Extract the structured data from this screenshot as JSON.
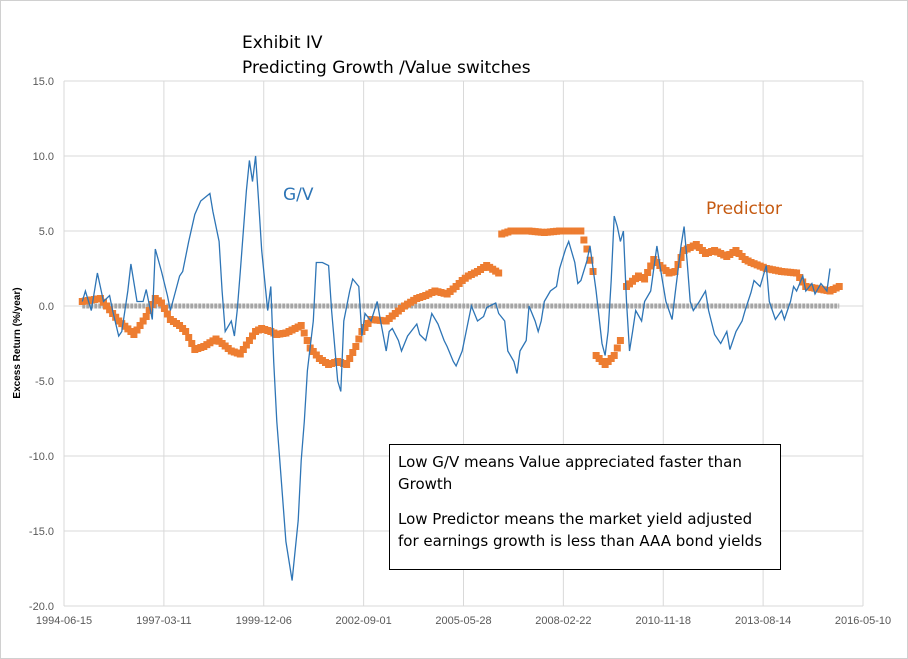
{
  "chart_data": {
    "type": "line",
    "title": "Exhibit IV",
    "subtitle": "Predicting Growth /Value switches",
    "xlabel": "",
    "ylabel": "Excess Return (%/year)",
    "xlim": [
      "1994-06-15",
      "2016-05-10"
    ],
    "x_ticks": [
      "1994-06-15",
      "1997-03-11",
      "1999-12-06",
      "2002-09-01",
      "2005-05-28",
      "2008-02-22",
      "2010-11-18",
      "2013-08-14",
      "2016-05-10"
    ],
    "ylim": [
      -20,
      15
    ],
    "y_ticks": [
      "-20.0",
      "-15.0",
      "-10.0",
      "-5.0",
      "0.0",
      "5.0",
      "10.0",
      "15.0"
    ],
    "grid": true,
    "legend": "none",
    "annotations": {
      "gv": "G/V",
      "predictor": "Predictor",
      "note1": "Low G/V means Value appreciated faster than Growth",
      "note2": "Low Predictor means the market yield adjusted for earnings growth is less than AAA bond yields"
    },
    "colors": {
      "gv": "#2e75b6",
      "predictor": "#ed7d31",
      "zero": "#a5a5a5"
    },
    "series": [
      {
        "name": "G/V",
        "style": "line",
        "points": [
          [
            "1994-12",
            0.3
          ],
          [
            "1995-01",
            1.0
          ],
          [
            "1995-03",
            -0.3
          ],
          [
            "1995-05",
            2.2
          ],
          [
            "1995-07",
            0.3
          ],
          [
            "1995-09",
            0.7
          ],
          [
            "1995-10",
            -0.3
          ],
          [
            "1995-12",
            -2.0
          ],
          [
            "1996-01",
            -1.7
          ],
          [
            "1996-03",
            1.0
          ],
          [
            "1996-04",
            2.8
          ],
          [
            "1996-06",
            0.3
          ],
          [
            "1996-08",
            0.3
          ],
          [
            "1996-09",
            1.1
          ],
          [
            "1996-11",
            -0.9
          ],
          [
            "1996-12",
            3.8
          ],
          [
            "1997-02",
            2.3
          ],
          [
            "1997-04",
            0.7
          ],
          [
            "1997-05",
            -0.3
          ],
          [
            "1997-08",
            2.0
          ],
          [
            "1997-09",
            2.3
          ],
          [
            "1997-11",
            4.3
          ],
          [
            "1998-01",
            6.1
          ],
          [
            "1998-03",
            7.0
          ],
          [
            "1998-06",
            7.5
          ],
          [
            "1998-07",
            6.3
          ],
          [
            "1998-09",
            4.3
          ],
          [
            "1998-10",
            1.0
          ],
          [
            "1998-11",
            -1.7
          ],
          [
            "1999-01",
            -1.0
          ],
          [
            "1999-02",
            -2.0
          ],
          [
            "1999-03",
            -0.3
          ],
          [
            "1999-04",
            2.3
          ],
          [
            "1999-06",
            7.7
          ],
          [
            "1999-07",
            9.7
          ],
          [
            "1999-08",
            8.3
          ],
          [
            "1999-09",
            10.0
          ],
          [
            "1999-10",
            7.0
          ],
          [
            "1999-11",
            3.7
          ],
          [
            "2000-01",
            -0.3
          ],
          [
            "2000-02",
            1.3
          ],
          [
            "2000-03",
            -3.7
          ],
          [
            "2000-04",
            -7.7
          ],
          [
            "2000-05",
            -10.3
          ],
          [
            "2000-07",
            -15.7
          ],
          [
            "2000-08",
            -17.0
          ],
          [
            "2000-09",
            -18.3
          ],
          [
            "2000-11",
            -14.3
          ],
          [
            "2000-12",
            -10.3
          ],
          [
            "2001-01",
            -7.7
          ],
          [
            "2001-02",
            -4.3
          ],
          [
            "2001-04",
            -1.0
          ],
          [
            "2001-05",
            2.9
          ],
          [
            "2001-07",
            2.9
          ],
          [
            "2001-09",
            2.7
          ],
          [
            "2001-10",
            -0.3
          ],
          [
            "2001-12",
            -5.0
          ],
          [
            "2002-01",
            -5.7
          ],
          [
            "2002-02",
            -1.0
          ],
          [
            "2002-04",
            1.0
          ],
          [
            "2002-05",
            1.8
          ],
          [
            "2002-07",
            1.3
          ],
          [
            "2002-08",
            -2.0
          ],
          [
            "2002-09",
            -0.5
          ],
          [
            "2002-11",
            -1.0
          ],
          [
            "2003-01",
            0.3
          ],
          [
            "2003-02",
            -0.9
          ],
          [
            "2003-04",
            -3.0
          ],
          [
            "2003-05",
            -1.7
          ],
          [
            "2003-06",
            -1.5
          ],
          [
            "2003-08",
            -2.3
          ],
          [
            "2003-09",
            -3.0
          ],
          [
            "2003-11",
            -2.0
          ],
          [
            "2004-02",
            -1.2
          ],
          [
            "2004-03",
            -1.9
          ],
          [
            "2004-05",
            -2.3
          ],
          [
            "2004-07",
            -0.5
          ],
          [
            "2004-09",
            -1.2
          ],
          [
            "2004-11",
            -2.3
          ],
          [
            "2004-12",
            -2.7
          ],
          [
            "2005-02",
            -3.7
          ],
          [
            "2005-03",
            -4.0
          ],
          [
            "2005-05",
            -3.0
          ],
          [
            "2005-07",
            -1.0
          ],
          [
            "2005-08",
            0.0
          ],
          [
            "2005-10",
            -1.0
          ],
          [
            "2005-12",
            -0.7
          ],
          [
            "2006-01",
            -0.1
          ],
          [
            "2006-03",
            0.1
          ],
          [
            "2006-04",
            0.2
          ],
          [
            "2006-05",
            -0.5
          ],
          [
            "2006-07",
            -1.0
          ],
          [
            "2006-08",
            -3.0
          ],
          [
            "2006-10",
            -3.7
          ],
          [
            "2006-11",
            -4.5
          ],
          [
            "2006-12",
            -3.0
          ],
          [
            "2007-02",
            -2.3
          ],
          [
            "2007-03",
            0.0
          ],
          [
            "2007-05",
            -1.0
          ],
          [
            "2007-06",
            -1.7
          ],
          [
            "2007-07",
            -1.0
          ],
          [
            "2007-08",
            0.3
          ],
          [
            "2007-10",
            1.0
          ],
          [
            "2007-12",
            1.3
          ],
          [
            "2008-01",
            2.5
          ],
          [
            "2008-03",
            3.8
          ],
          [
            "2008-04",
            4.3
          ],
          [
            "2008-06",
            2.9
          ],
          [
            "2008-07",
            1.5
          ],
          [
            "2008-08",
            1.7
          ],
          [
            "2008-10",
            3.0
          ],
          [
            "2008-11",
            4.0
          ],
          [
            "2009-01",
            1.0
          ],
          [
            "2009-03",
            -2.5
          ],
          [
            "2009-04",
            -3.3
          ],
          [
            "2009-05",
            -1.7
          ],
          [
            "2009-06",
            1.7
          ],
          [
            "2009-07",
            6.0
          ],
          [
            "2009-08",
            5.3
          ],
          [
            "2009-09",
            4.3
          ],
          [
            "2009-10",
            5.0
          ],
          [
            "2009-11",
            0.3
          ],
          [
            "2009-12",
            -3.0
          ],
          [
            "2010-01",
            -1.7
          ],
          [
            "2010-02",
            -0.3
          ],
          [
            "2010-04",
            -1.0
          ],
          [
            "2010-05",
            0.3
          ],
          [
            "2010-07",
            1.0
          ],
          [
            "2010-09",
            4.0
          ],
          [
            "2010-10",
            2.7
          ],
          [
            "2010-12",
            0.3
          ],
          [
            "2011-02",
            -0.9
          ],
          [
            "2011-03",
            0.7
          ],
          [
            "2011-05",
            4.0
          ],
          [
            "2011-06",
            5.3
          ],
          [
            "2011-07",
            3.0
          ],
          [
            "2011-08",
            0.3
          ],
          [
            "2011-09",
            -0.3
          ],
          [
            "2011-11",
            0.3
          ],
          [
            "2012-01",
            1.0
          ],
          [
            "2012-02",
            -0.3
          ],
          [
            "2012-04",
            -1.9
          ],
          [
            "2012-06",
            -2.5
          ],
          [
            "2012-08",
            -1.7
          ],
          [
            "2012-09",
            -2.9
          ],
          [
            "2012-11",
            -1.7
          ],
          [
            "2013-01",
            -1.0
          ],
          [
            "2013-02",
            -0.3
          ],
          [
            "2013-04",
            0.9
          ],
          [
            "2013-05",
            1.7
          ],
          [
            "2013-07",
            1.3
          ],
          [
            "2013-09",
            2.7
          ],
          [
            "2013-10",
            0.3
          ],
          [
            "2013-12",
            -0.9
          ],
          [
            "2014-02",
            -0.3
          ],
          [
            "2014-03",
            -0.9
          ],
          [
            "2014-05",
            0.3
          ],
          [
            "2014-06",
            1.3
          ],
          [
            "2014-07",
            1.0
          ],
          [
            "2014-09",
            2.0
          ],
          [
            "2014-10",
            1.0
          ],
          [
            "2014-12",
            1.5
          ],
          [
            "2015-01",
            0.8
          ],
          [
            "2015-03",
            1.5
          ],
          [
            "2015-05",
            1.0
          ],
          [
            "2015-06",
            2.5
          ]
        ]
      },
      {
        "name": "Predictor",
        "style": "markers",
        "points": [
          [
            "1994-12",
            0.3
          ],
          [
            "1995-06",
            0.5
          ],
          [
            "1995-12",
            -1.0
          ],
          [
            "1996-04",
            -1.7
          ],
          [
            "1996-05",
            -1.9
          ],
          [
            "1996-09",
            -0.7
          ],
          [
            "1996-12",
            0.5
          ],
          [
            "1997-02",
            0.2
          ],
          [
            "1997-05",
            -0.9
          ],
          [
            "1997-08",
            -1.3
          ],
          [
            "1997-10",
            -1.7
          ],
          [
            "1998-01",
            -2.9
          ],
          [
            "1998-04",
            -2.7
          ],
          [
            "1998-08",
            -2.2
          ],
          [
            "1998-10",
            -2.5
          ],
          [
            "1999-01",
            -3.0
          ],
          [
            "1999-04",
            -3.2
          ],
          [
            "1999-09",
            -1.7
          ],
          [
            "1999-11",
            -1.5
          ],
          [
            "2000-02",
            -1.7
          ],
          [
            "2000-04",
            -1.9
          ],
          [
            "2000-07",
            -1.8
          ],
          [
            "2000-12",
            -1.3
          ],
          [
            "2001-03",
            -2.8
          ],
          [
            "2001-06",
            -3.5
          ],
          [
            "2001-09",
            -3.9
          ],
          [
            "2001-12",
            -3.7
          ],
          [
            "2002-03",
            -3.9
          ],
          [
            "2002-06",
            -2.7
          ],
          [
            "2002-08",
            -1.7
          ],
          [
            "2002-11",
            -0.9
          ],
          [
            "2003-04",
            -1.0
          ],
          [
            "2003-07",
            -0.5
          ],
          [
            "2003-10",
            0.0
          ],
          [
            "2004-02",
            0.5
          ],
          [
            "2004-05",
            0.7
          ],
          [
            "2004-08",
            1.0
          ],
          [
            "2004-12",
            0.8
          ],
          [
            "2005-03",
            1.3
          ],
          [
            "2005-05",
            1.7
          ],
          [
            "2005-07",
            2.0
          ],
          [
            "2005-10",
            2.3
          ],
          [
            "2006-01",
            2.7
          ],
          [
            "2006-05",
            2.2
          ],
          [
            "2006-06",
            4.8
          ],
          [
            "2006-09",
            5.0
          ],
          [
            "2007-03",
            5.0
          ],
          [
            "2007-08",
            4.9
          ],
          [
            "2008-01",
            5.0
          ],
          [
            "2008-08",
            5.0
          ],
          [
            "2008-10",
            3.8
          ],
          [
            "2008-12",
            2.3
          ],
          [
            "2009-01",
            -3.3
          ],
          [
            "2009-04",
            -3.9
          ],
          [
            "2009-07",
            -3.3
          ],
          [
            "2009-09",
            -2.3
          ],
          [
            "2009-11",
            1.3
          ],
          [
            "2010-03",
            2.0
          ],
          [
            "2010-05",
            1.8
          ],
          [
            "2010-08",
            3.1
          ],
          [
            "2010-10",
            2.7
          ],
          [
            "2011-01",
            2.2
          ],
          [
            "2011-03",
            2.3
          ],
          [
            "2011-06",
            3.7
          ],
          [
            "2011-10",
            4.1
          ],
          [
            "2012-01",
            3.5
          ],
          [
            "2012-04",
            3.7
          ],
          [
            "2012-08",
            3.3
          ],
          [
            "2012-11",
            3.7
          ],
          [
            "2013-02",
            3.1
          ],
          [
            "2013-04",
            2.9
          ],
          [
            "2013-09",
            2.5
          ],
          [
            "2014-02",
            2.3
          ],
          [
            "2014-07",
            2.2
          ],
          [
            "2014-10",
            1.3
          ],
          [
            "2015-06",
            1.0
          ],
          [
            "2015-09",
            1.3
          ]
        ]
      },
      {
        "style": "markers",
        "points": [
          [
            "1994-12",
            0
          ],
          [
            "2015-09",
            0
          ]
        ]
      }
    ]
  }
}
